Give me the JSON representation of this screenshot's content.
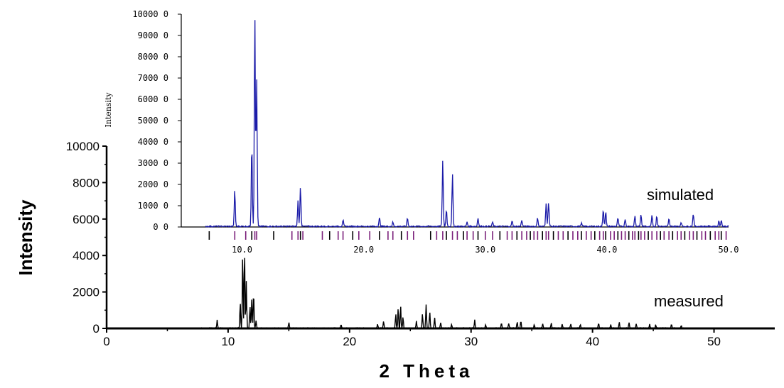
{
  "chart_data": [
    {
      "type": "line",
      "name": "main",
      "xlabel": "2 Theta",
      "ylabel": "Intensity",
      "xlim": [
        0,
        55
      ],
      "ylim": [
        0,
        10000
      ],
      "x_ticks": [
        "0",
        "10",
        "20",
        "30",
        "40",
        "50"
      ],
      "y_ticks": [
        "0",
        "2000",
        "4000",
        "6000",
        "8000",
        "10000"
      ],
      "annotation": "measured",
      "color": "#000000",
      "peaks": [
        [
          9.1,
          450
        ],
        [
          11.0,
          1400
        ],
        [
          11.2,
          4000
        ],
        [
          11.35,
          4400
        ],
        [
          11.5,
          2600
        ],
        [
          11.8,
          1200
        ],
        [
          11.95,
          1600
        ],
        [
          12.1,
          2050
        ],
        [
          12.3,
          400
        ],
        [
          15.0,
          300
        ],
        [
          19.3,
          200
        ],
        [
          22.3,
          200
        ],
        [
          22.8,
          400
        ],
        [
          23.8,
          800
        ],
        [
          24.0,
          1100
        ],
        [
          24.2,
          1250
        ],
        [
          24.4,
          600
        ],
        [
          25.5,
          400
        ],
        [
          26.0,
          800
        ],
        [
          26.3,
          1300
        ],
        [
          26.6,
          900
        ],
        [
          27.0,
          600
        ],
        [
          27.5,
          300
        ],
        [
          28.4,
          200
        ],
        [
          30.3,
          450
        ],
        [
          31.2,
          200
        ],
        [
          32.5,
          300
        ],
        [
          33.1,
          250
        ],
        [
          33.8,
          350
        ],
        [
          34.1,
          380
        ],
        [
          35.2,
          200
        ],
        [
          35.9,
          250
        ],
        [
          36.6,
          280
        ],
        [
          37.5,
          200
        ],
        [
          38.2,
          220
        ],
        [
          39.0,
          200
        ],
        [
          40.5,
          280
        ],
        [
          41.5,
          200
        ],
        [
          42.2,
          320
        ],
        [
          43.0,
          300
        ],
        [
          43.6,
          250
        ],
        [
          44.7,
          200
        ],
        [
          45.2,
          180
        ],
        [
          46.5,
          200
        ],
        [
          47.3,
          150
        ]
      ]
    },
    {
      "type": "line",
      "name": "inset",
      "ylabel": "Intensity",
      "xlim": [
        5,
        50
      ],
      "ylim": [
        0,
        10000
      ],
      "x_ticks": [
        "10.0",
        "20.0",
        "30.0",
        "40.0",
        "50.0"
      ],
      "y_ticks": [
        "0 0",
        "1000 0",
        "2000 0",
        "3000 0",
        "4000 0",
        "5000 0",
        "6000 0",
        "7000 0",
        "8000 0",
        "9000 0",
        "10000 0"
      ],
      "annotation": "simulated",
      "color": "#1a1aa8",
      "reflection_color": "#7a1f7a",
      "peaks": [
        [
          9.4,
          1700
        ],
        [
          10.8,
          3900
        ],
        [
          11.05,
          10000
        ],
        [
          11.2,
          6900
        ],
        [
          14.6,
          1200
        ],
        [
          14.8,
          1900
        ],
        [
          18.3,
          300
        ],
        [
          21.3,
          400
        ],
        [
          22.4,
          200
        ],
        [
          23.6,
          400
        ],
        [
          26.5,
          3100
        ],
        [
          26.8,
          800
        ],
        [
          27.3,
          2450
        ],
        [
          28.5,
          200
        ],
        [
          29.4,
          400
        ],
        [
          30.6,
          200
        ],
        [
          32.2,
          250
        ],
        [
          33.0,
          300
        ],
        [
          34.3,
          400
        ],
        [
          35.0,
          1100
        ],
        [
          35.2,
          1150
        ],
        [
          37.9,
          150
        ],
        [
          39.7,
          800
        ],
        [
          39.9,
          700
        ],
        [
          40.9,
          400
        ],
        [
          41.5,
          350
        ],
        [
          42.3,
          500
        ],
        [
          42.8,
          550
        ],
        [
          43.7,
          550
        ],
        [
          44.1,
          500
        ],
        [
          45.1,
          350
        ],
        [
          46.1,
          200
        ],
        [
          47.1,
          600
        ],
        [
          49.2,
          250
        ],
        [
          49.4,
          300
        ]
      ],
      "reflections": [
        7.3,
        9.4,
        10.3,
        10.8,
        11.05,
        11.2,
        12.6,
        14.1,
        14.6,
        14.8,
        15.0,
        16.6,
        17.2,
        17.9,
        18.3,
        19.1,
        19.6,
        20.5,
        21.3,
        22.0,
        22.4,
        23.1,
        23.6,
        24.1,
        25.5,
        26.0,
        26.5,
        26.8,
        27.3,
        27.7,
        28.2,
        28.5,
        29.0,
        29.4,
        30.0,
        30.6,
        31.2,
        31.8,
        32.2,
        32.6,
        33.0,
        33.4,
        33.7,
        34.0,
        34.3,
        34.7,
        35.0,
        35.2,
        35.6,
        36.0,
        36.4,
        36.8,
        37.2,
        37.6,
        37.9,
        38.3,
        38.7,
        39.0,
        39.4,
        39.7,
        39.9,
        40.3,
        40.6,
        40.9,
        41.2,
        41.5,
        41.8,
        42.1,
        42.3,
        42.6,
        42.8,
        43.1,
        43.4,
        43.7,
        44.1,
        44.4,
        44.7,
        45.1,
        45.4,
        45.8,
        46.1,
        46.4,
        46.8,
        47.1,
        47.4,
        47.8,
        48.1,
        48.5,
        48.9,
        49.2,
        49.4,
        49.8
      ]
    }
  ]
}
